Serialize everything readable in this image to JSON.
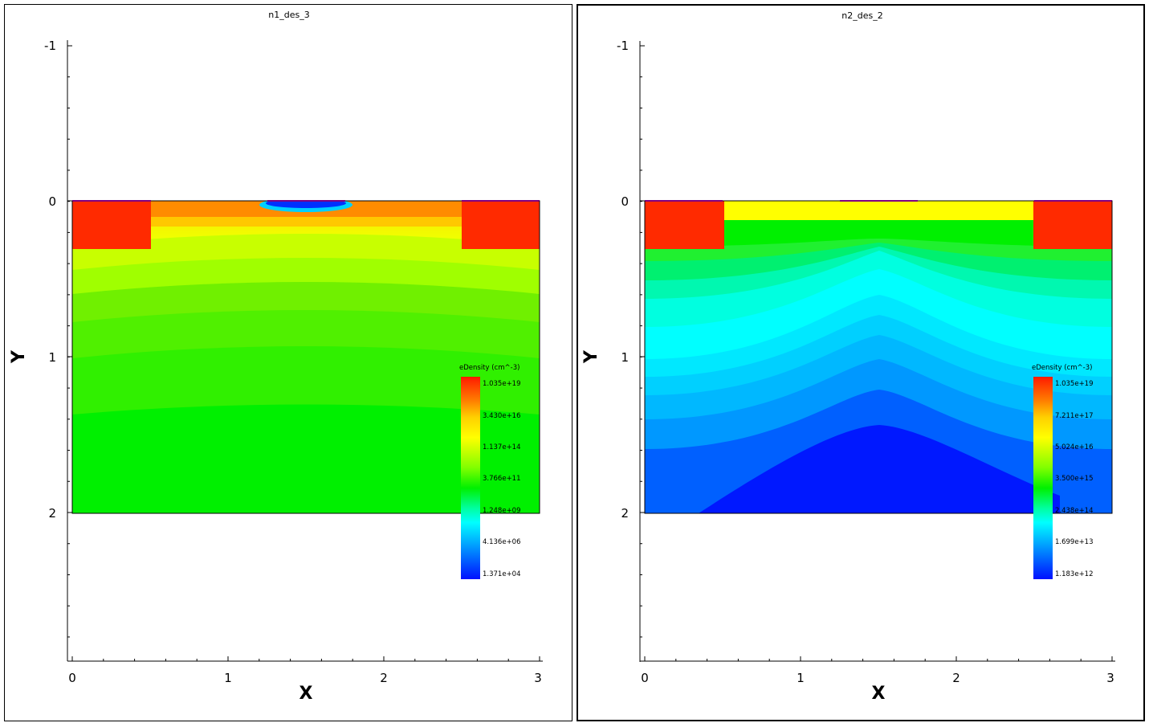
{
  "plots": [
    {
      "title": "n1_des_3",
      "x_label": "X",
      "y_label": "Y",
      "x_ticks": [
        "0",
        "1",
        "2",
        "3"
      ],
      "y_ticks": [
        "-1",
        "0",
        "1",
        "2"
      ],
      "colorbar": {
        "title": "eDensity (cm^-3)",
        "labels": [
          "1.035e+19",
          "3.430e+16",
          "1.137e+14",
          "3.766e+11",
          "1.248e+09",
          "4.136e+06",
          "1.371e+04"
        ]
      }
    },
    {
      "title": "n2_des_2",
      "x_label": "X",
      "y_label": "Y",
      "x_ticks": [
        "0",
        "1",
        "2",
        "3"
      ],
      "y_ticks": [
        "-1",
        "0",
        "1",
        "2"
      ],
      "colorbar": {
        "title": "eDensity (cm^-3)",
        "labels": [
          "1.035e+19",
          "7.211e+17",
          "5.024e+16",
          "3.500e+15",
          "2.438e+14",
          "1.699e+13",
          "1.183e+12"
        ]
      }
    }
  ],
  "colors": {
    "red": "#ff2a00",
    "magenta": "#ff00ff",
    "green": "#00f000",
    "blue": "#0018ff"
  }
}
